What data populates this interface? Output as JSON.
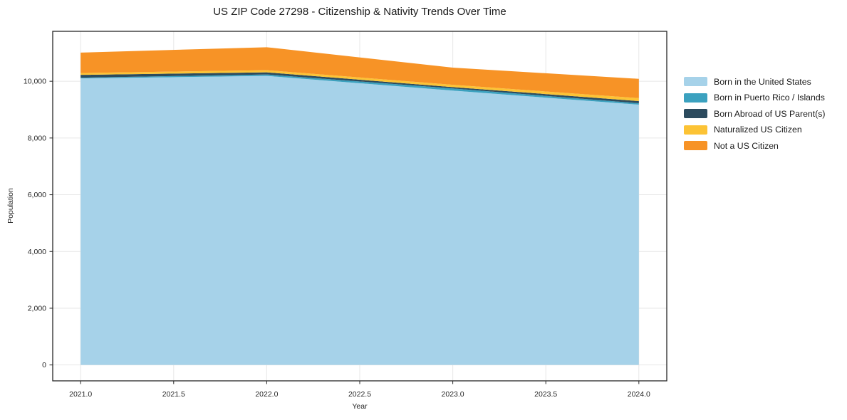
{
  "chart_data": {
    "type": "area",
    "stacked": true,
    "title": "US ZIP Code 27298 - Citizenship & Nativity Trends Over Time",
    "xlabel": "Year",
    "ylabel": "Population",
    "x": [
      2021,
      2022,
      2023,
      2024
    ],
    "series": [
      {
        "name": "Born in the United States",
        "color": "#a6d2e9",
        "values": [
          10100,
          10190,
          9670,
          9175
        ]
      },
      {
        "name": "Born in Puerto Rico / Islands",
        "color": "#3ba1bf",
        "values": [
          25,
          50,
          75,
          50
        ]
      },
      {
        "name": "Born Abroad of US Parent(s)",
        "color": "#2c4b5e",
        "values": [
          100,
          75,
          50,
          75
        ]
      },
      {
        "name": "Naturalized US Citizen",
        "color": "#fcc335",
        "values": [
          65,
          75,
          80,
          105
        ]
      },
      {
        "name": "Not a US Citizen",
        "color": "#f79326",
        "values": [
          720,
          810,
          605,
          680
        ]
      }
    ],
    "totals": [
      11010,
      11200,
      10480,
      10085
    ],
    "xticks": [
      2021.0,
      2021.5,
      2022.0,
      2022.5,
      2023.0,
      2023.5,
      2024.0
    ],
    "xtick_labels": [
      "2021.0",
      "2021.5",
      "2022.0",
      "2022.5",
      "2023.0",
      "2023.5",
      "2024.0"
    ],
    "yticks": [
      0,
      2000,
      4000,
      6000,
      8000,
      10000
    ],
    "ytick_labels": [
      "0",
      "2,000",
      "4,000",
      "6,000",
      "8,000",
      "10,000"
    ],
    "xlim": [
      2020.85,
      2024.15
    ],
    "ylim": [
      -560,
      11760
    ],
    "grid": true,
    "legend_position": "outside-right",
    "colors": {
      "gridline": "#e7e7e7",
      "spine": "#262626",
      "tick_text": "#262626",
      "background": "#ffffff"
    }
  }
}
